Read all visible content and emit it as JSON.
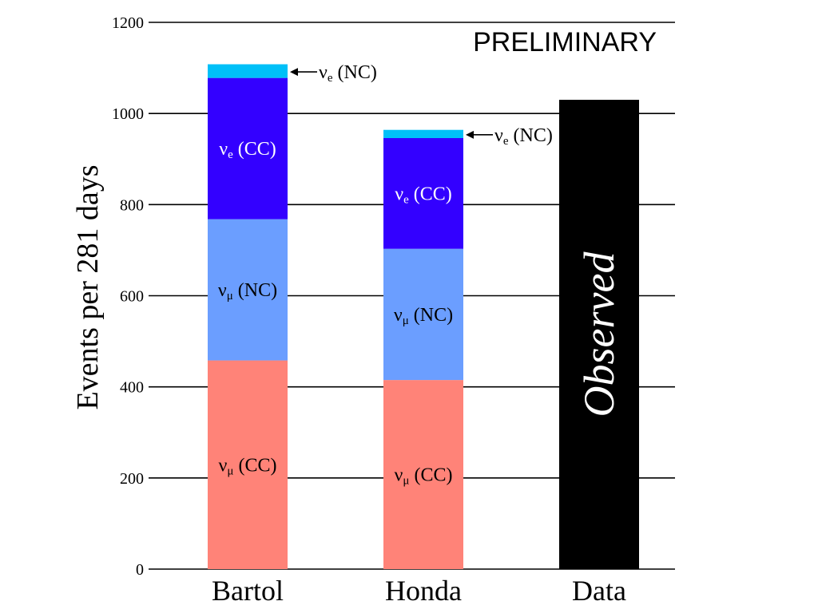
{
  "chart_data": {
    "type": "bar",
    "stacked": true,
    "title": "PRELIMINARY",
    "ylabel": "Events per 281 days",
    "ylim": [
      0,
      1200
    ],
    "yticks": [
      0,
      200,
      400,
      600,
      800,
      1000,
      1200
    ],
    "grid": true,
    "categories": [
      "Bartol",
      "Honda",
      "Data"
    ],
    "series": [
      {
        "name": "νμ (CC)",
        "sym": "ν",
        "sub": "μ",
        "tag": "(CC)",
        "color": "#ff8378",
        "text_color": "#000000",
        "values": [
          458,
          415,
          null
        ]
      },
      {
        "name": "νμ (NC)",
        "sym": "ν",
        "sub": "μ",
        "tag": "(NC)",
        "color": "#6b9eff",
        "text_color": "#000000",
        "values": [
          310,
          288,
          null
        ]
      },
      {
        "name": "νe (CC)",
        "sym": "ν",
        "sub": "e",
        "tag": "(CC)",
        "color": "#3300ff",
        "text_color": "#ffffff",
        "values": [
          310,
          243,
          null
        ]
      },
      {
        "name": "νe (NC)",
        "sym": "ν",
        "sub": "e",
        "tag": "(NC)",
        "color": "#00c0f8",
        "text_color": "#000000",
        "values": [
          30,
          18,
          null
        ],
        "label_outside": true
      },
      {
        "name": "Observed",
        "color": "#000000",
        "text_color": "#ffffff",
        "values": [
          null,
          null,
          1030
        ],
        "label_rotated": true
      }
    ]
  }
}
